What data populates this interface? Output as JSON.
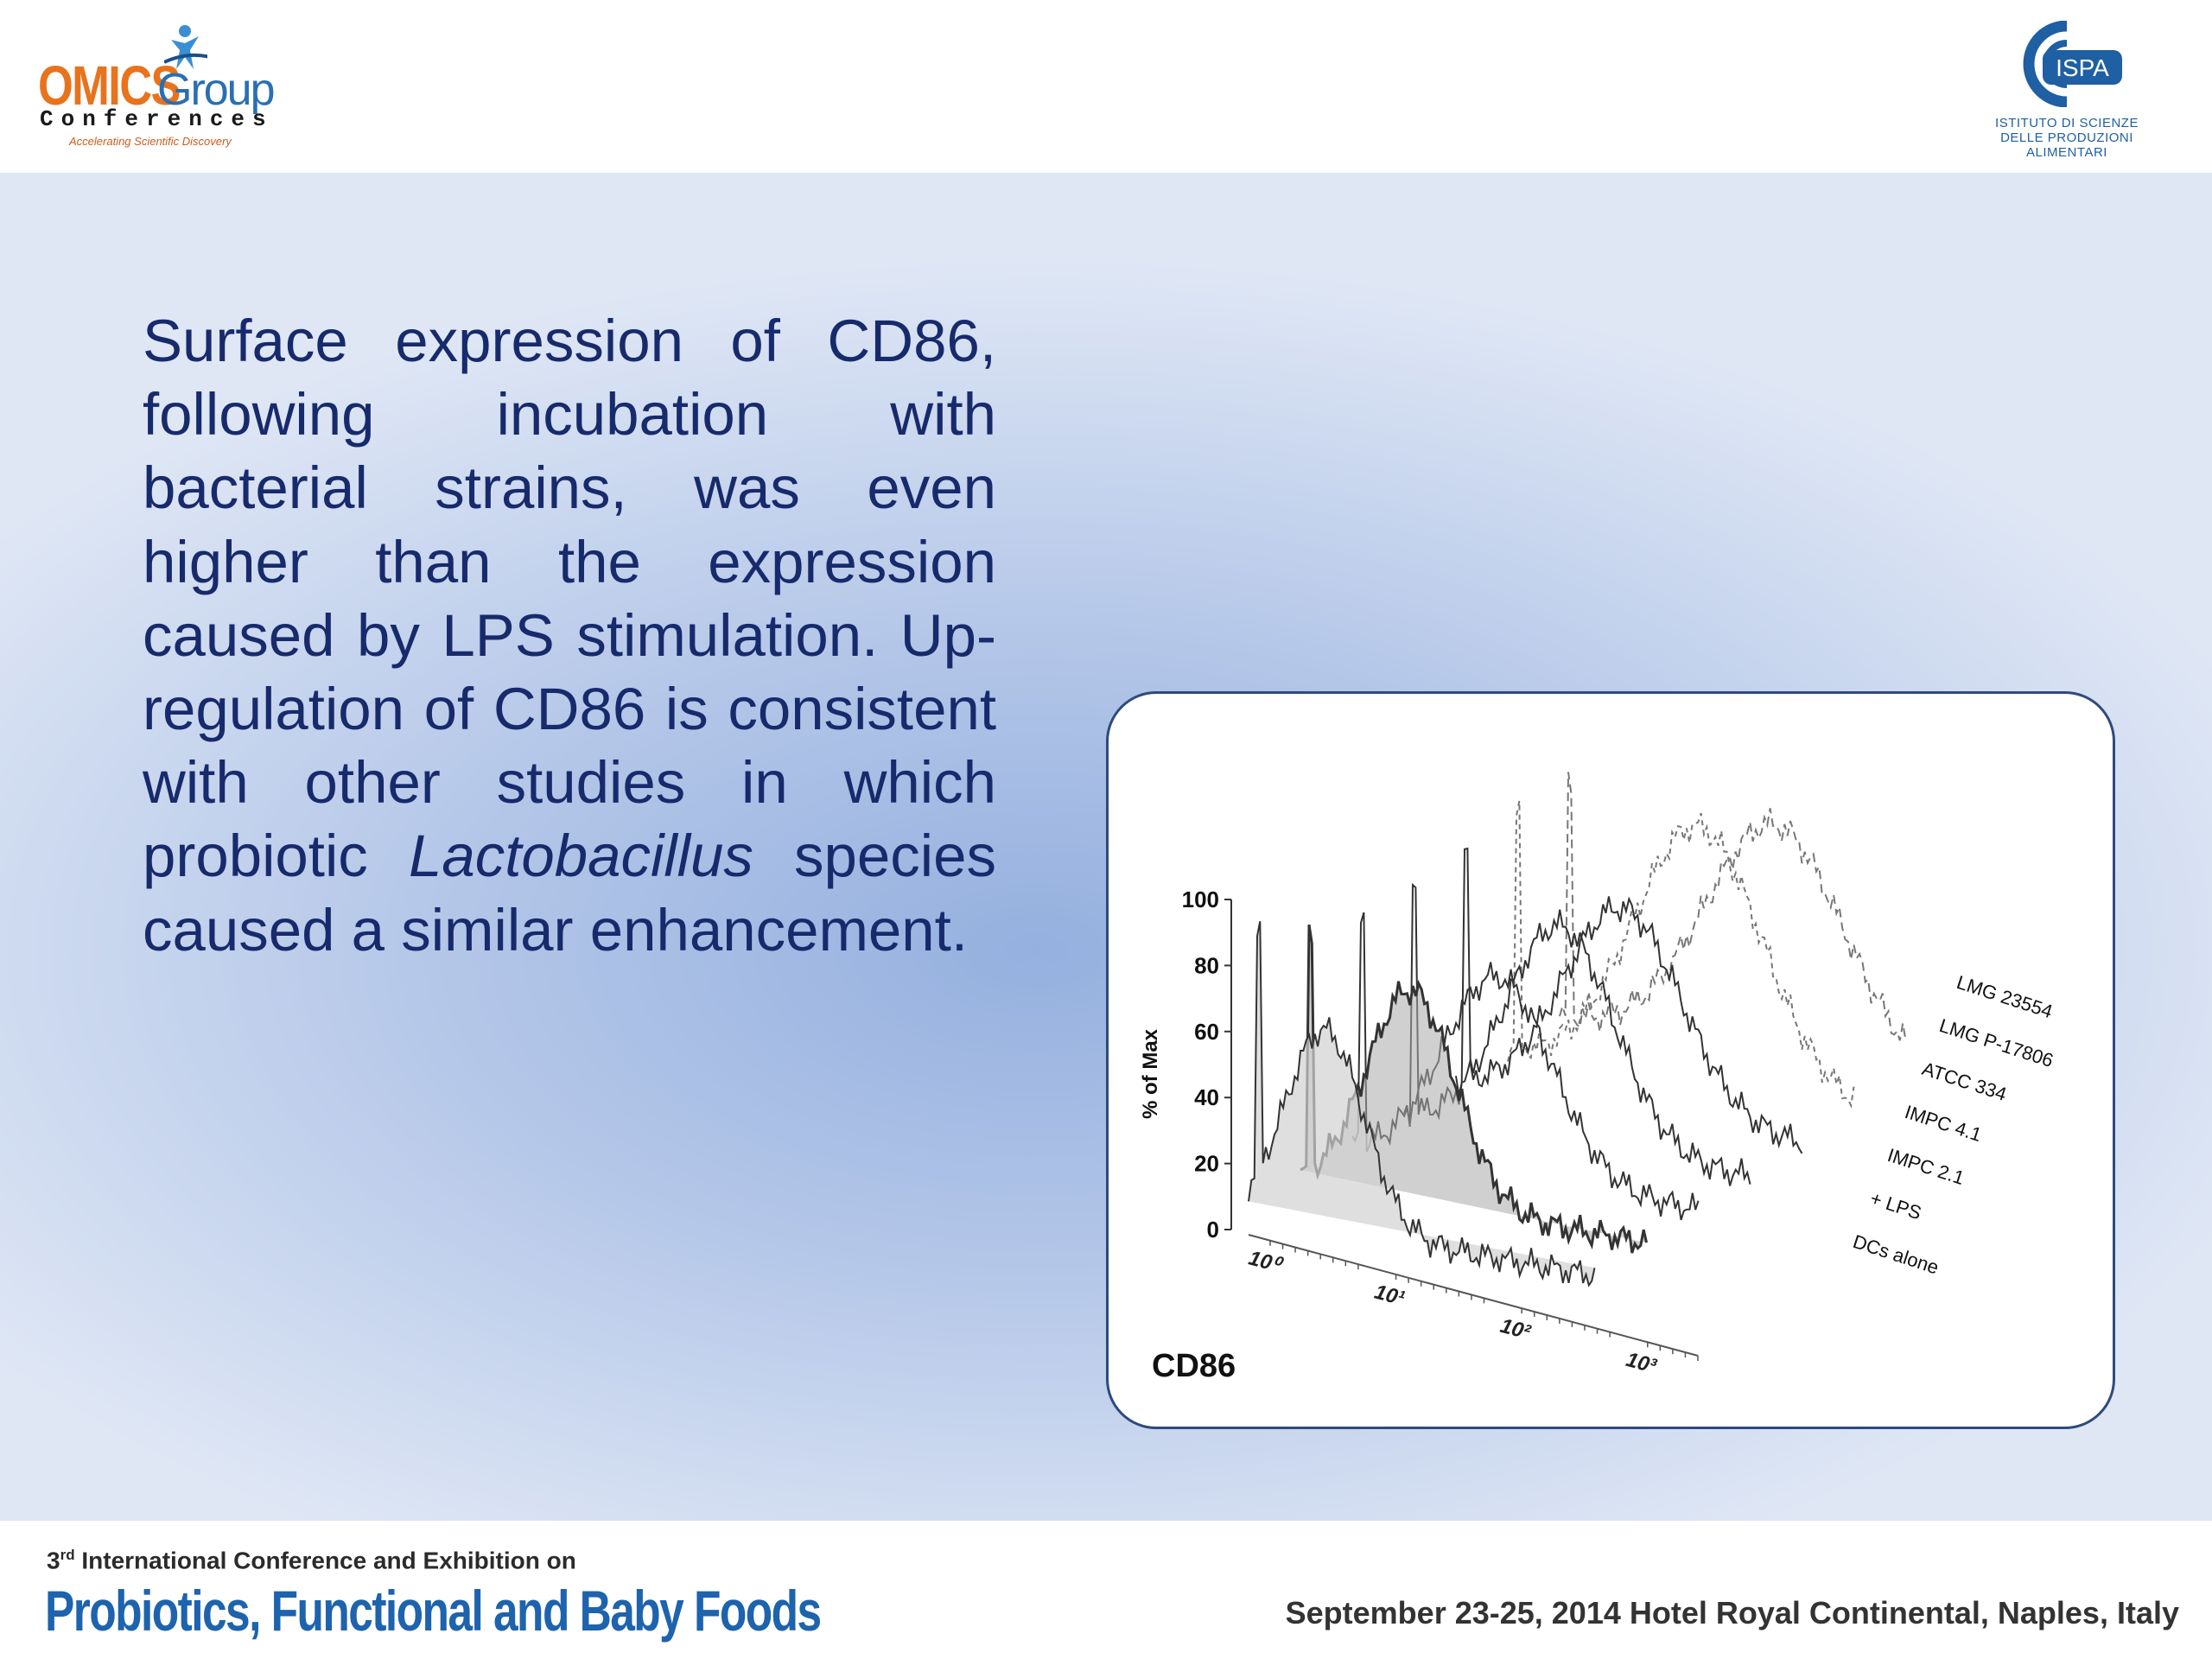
{
  "header": {
    "left_logo": {
      "name_part1": "OMICS",
      "name_part2": "Group",
      "subtitle": "Conferences",
      "tagline": "Accelerating Scientific Discovery"
    },
    "right_logo": {
      "acronym": "ISPA",
      "institute_name": "ISTITUTO DI SCIENZE DELLE PRODUZIONI ALIMENTARI"
    }
  },
  "main": {
    "text_before_italic": "Surface expression of CD86, following incubation with bacterial strains, was even higher than the expression caused by LPS stimulation. Up-regulation of CD86 is consistent with other studies in which probiotic ",
    "text_italic": "Lactobacillus",
    "text_after_italic": " species caused a similar enhancement."
  },
  "figure": {
    "label": "CD86",
    "chart_data": {
      "type": "line",
      "ylabel": "% of Max",
      "y_ticks": [
        "0",
        "20",
        "40",
        "60",
        "80",
        "100"
      ],
      "ylim": [
        0,
        100
      ],
      "x_ticks": [
        "10⁰",
        "10¹",
        "10²",
        "10³"
      ],
      "x_scale": "log",
      "series_labels": [
        "LMG 23554",
        "LMG P-17806",
        "ATCC 334",
        "IMPC 4.1",
        "IMPC 2.1",
        "+ LPS",
        "DCs alone"
      ]
    }
  },
  "footer": {
    "edition_number": "3",
    "edition_suffix": "rd",
    "edition_text": " International Conference and Exhibition on",
    "conference_title": "Probiotics, Functional and Baby Foods",
    "dates_location": "September 23-25, 2014   Hotel Royal Continental, Naples, Italy"
  },
  "colors": {
    "omics_orange": "#e8731c",
    "brand_blue": "#1d63ad",
    "body_text": "#172a6c",
    "figure_border": "#2f4a7c"
  }
}
